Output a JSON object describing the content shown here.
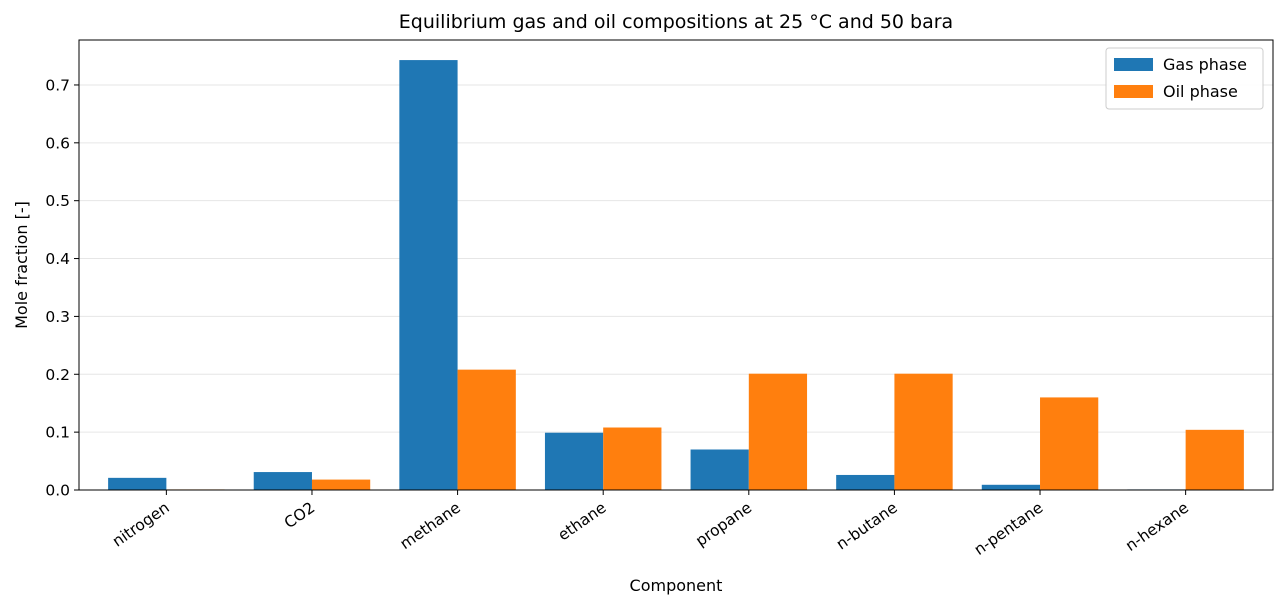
{
  "chart_data": {
    "type": "bar",
    "title": "Equilibrium gas and oil compositions at 25 °C and 50 bara",
    "xlabel": "Component",
    "ylabel": "Mole fraction [-]",
    "categories": [
      "nitrogen",
      "CO2",
      "methane",
      "ethane",
      "propane",
      "n-butane",
      "n-pentane",
      "n-hexane"
    ],
    "series": [
      {
        "name": "Gas phase",
        "color": "#1f77b4",
        "values": [
          0.021,
          0.031,
          0.743,
          0.099,
          0.07,
          0.026,
          0.009,
          0.001
        ]
      },
      {
        "name": "Oil phase",
        "color": "#ff7f0e",
        "values": [
          0.001,
          0.018,
          0.208,
          0.108,
          0.201,
          0.201,
          0.16,
          0.104
        ]
      }
    ],
    "ylim": [
      0,
      0.7777
    ],
    "yticks": [
      0.0,
      0.1,
      0.2,
      0.3,
      0.4,
      0.5,
      0.6,
      0.7
    ],
    "ytick_labels": [
      "0.0",
      "0.1",
      "0.2",
      "0.3",
      "0.4",
      "0.5",
      "0.6",
      "0.7"
    ],
    "grid": "y",
    "legend_position": "top-right"
  }
}
